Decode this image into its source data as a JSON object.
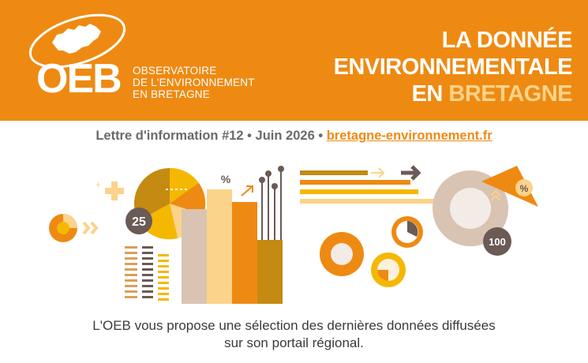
{
  "header": {
    "logo_letters": "OEB",
    "logo_sub": [
      "OBSERVATOIRE",
      "DE L'ENVIRONNEMENT",
      "EN BRETAGNE"
    ],
    "title_line1": "LA DONNÉE",
    "title_line2": "ENVIRONNEMENTALE",
    "title_line3_prefix": "EN ",
    "title_line3_accent": "BRETAGNE"
  },
  "newsletter": {
    "label": "Lettre d'information #12 • Juin 2026 •",
    "link": "bretagne-environnement.fr"
  },
  "illustration": {
    "badge_25": "25",
    "badge_100": "100",
    "percent_1": "%",
    "percent_2": "%"
  },
  "intro": {
    "line1": "L'OEB vous propose une sélection des dernières données diffusées",
    "line2": "sur son portail régional."
  },
  "colors": {
    "orange": "#ee8a12",
    "light_orange": "#fbd38a",
    "brown": "#c48a12",
    "beige": "#d9c3b2",
    "grey_dark": "#6b5a55",
    "yellow": "#f5b800"
  }
}
